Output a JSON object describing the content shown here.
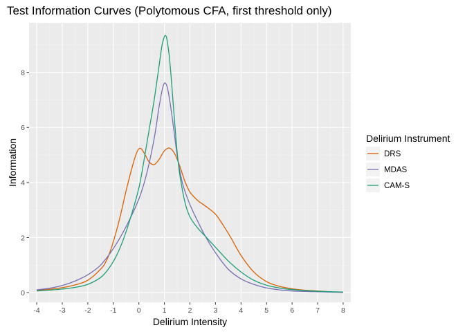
{
  "chart_data": {
    "type": "line",
    "title": "Test Information Curves (Polytomous CFA, first threshold only)",
    "xlabel": "Delirium Intensity",
    "ylabel": "Information",
    "xlim": [
      -4.3,
      8.3
    ],
    "ylim": [
      -0.35,
      9.8
    ],
    "x_ticks": [
      -4,
      -3,
      -2,
      -1,
      0,
      1,
      2,
      3,
      4,
      5,
      6,
      7,
      8
    ],
    "x_tick_labels": [
      "-4",
      "-3",
      "-2",
      "-1",
      "0",
      "1",
      "2",
      "3",
      "4",
      "5",
      "6",
      "7",
      "8"
    ],
    "y_ticks": [
      0,
      2,
      4,
      6,
      8
    ],
    "y_tick_labels": [
      "0",
      "2",
      "4",
      "6",
      "8"
    ],
    "grid": true,
    "legend": {
      "title": "Delirium Instrument",
      "position": "right"
    },
    "series": [
      {
        "name": "DRS",
        "color": "#d95f02",
        "x": [
          -4,
          -3.5,
          -3,
          -2.5,
          -2,
          -1.5,
          -1.25,
          -1,
          -0.75,
          -0.5,
          -0.25,
          -0.1,
          0,
          0.1,
          0.25,
          0.4,
          0.6,
          0.8,
          1,
          1.2,
          1.4,
          1.6,
          1.8,
          2,
          2.3,
          2.6,
          3,
          3.3,
          3.6,
          4,
          4.5,
          5,
          5.5,
          6,
          6.5,
          7,
          7.5,
          8
        ],
        "y": [
          0.08,
          0.12,
          0.18,
          0.28,
          0.45,
          0.85,
          1.2,
          1.85,
          2.7,
          3.7,
          4.6,
          5.05,
          5.22,
          5.22,
          5.0,
          4.75,
          4.65,
          4.85,
          5.15,
          5.25,
          5.05,
          4.6,
          4.05,
          3.65,
          3.35,
          3.15,
          2.85,
          2.45,
          2.0,
          1.35,
          0.75,
          0.4,
          0.23,
          0.14,
          0.09,
          0.06,
          0.03,
          0.01
        ]
      },
      {
        "name": "MDAS",
        "color": "#7570b3",
        "x": [
          -4,
          -3.5,
          -3,
          -2.5,
          -2,
          -1.5,
          -1,
          -0.5,
          0,
          0.3,
          0.6,
          0.8,
          0.95,
          1.05,
          1.15,
          1.3,
          1.5,
          1.7,
          2,
          2.3,
          2.6,
          3,
          3.5,
          4,
          4.5,
          5,
          5.5,
          6,
          7,
          8
        ],
        "y": [
          0.1,
          0.16,
          0.26,
          0.42,
          0.65,
          1.0,
          1.6,
          2.4,
          3.4,
          4.3,
          5.6,
          6.8,
          7.5,
          7.6,
          7.3,
          6.4,
          5.0,
          4.0,
          3.2,
          2.6,
          2.05,
          1.45,
          0.85,
          0.5,
          0.3,
          0.17,
          0.1,
          0.06,
          0.03,
          0.01
        ]
      },
      {
        "name": "CAM-S",
        "color": "#1b9e77",
        "x": [
          -4,
          -3.5,
          -3,
          -2.5,
          -2,
          -1.5,
          -1.2,
          -0.9,
          -0.6,
          -0.3,
          0,
          0.2,
          0.4,
          0.6,
          0.8,
          0.9,
          1.0,
          1.05,
          1.1,
          1.2,
          1.3,
          1.4,
          1.5,
          1.6,
          1.8,
          2.0,
          2.3,
          2.6,
          3,
          3.5,
          4,
          4.5,
          5,
          5.5,
          6,
          7,
          8
        ],
        "y": [
          0.06,
          0.09,
          0.13,
          0.19,
          0.3,
          0.55,
          0.85,
          1.3,
          1.95,
          2.8,
          3.8,
          4.8,
          5.9,
          7.0,
          8.3,
          8.95,
          9.3,
          9.33,
          9.2,
          8.5,
          7.4,
          6.2,
          5.1,
          4.3,
          3.3,
          2.75,
          2.35,
          2.05,
          1.65,
          1.15,
          0.75,
          0.45,
          0.27,
          0.17,
          0.11,
          0.05,
          0.02
        ]
      }
    ]
  }
}
